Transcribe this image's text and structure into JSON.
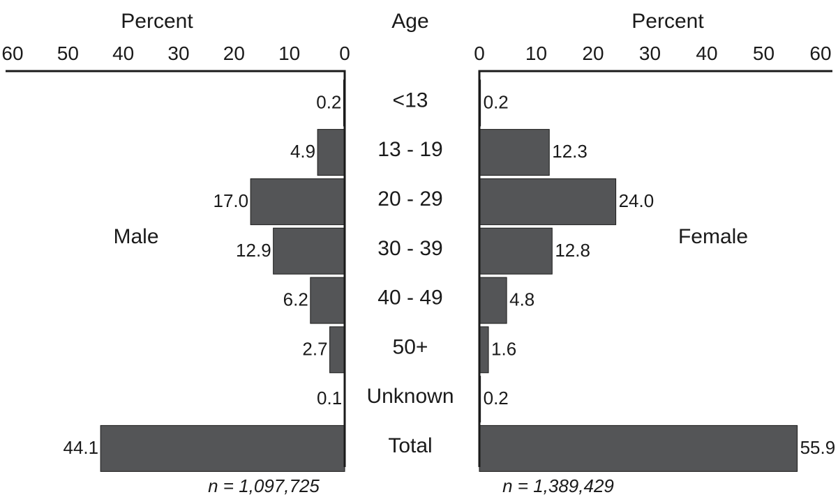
{
  "chart_data": {
    "type": "bar",
    "layout": "population-pyramid",
    "center_label": "Age",
    "categories": [
      "<13",
      "13 - 19",
      "20 - 29",
      "30 - 39",
      "40 - 49",
      "50+",
      "Unknown",
      "Total"
    ],
    "left": {
      "name": "Male",
      "axis_title": "Percent",
      "xlim": [
        0,
        60
      ],
      "ticks": [
        "0",
        "10",
        "20",
        "30",
        "40",
        "50",
        "60"
      ],
      "values": [
        0.2,
        4.9,
        17.0,
        12.9,
        6.2,
        2.7,
        0.1,
        44.1
      ],
      "labels": [
        "0.2",
        "4.9",
        "17.0",
        "12.9",
        "6.2",
        "2.7",
        "0.1",
        "44.1"
      ],
      "n_label": "n = 1,097,725"
    },
    "right": {
      "name": "Female",
      "axis_title": "Percent",
      "xlim": [
        0,
        60
      ],
      "ticks": [
        "0",
        "10",
        "20",
        "30",
        "40",
        "50",
        "60"
      ],
      "values": [
        0.2,
        12.3,
        24.0,
        12.8,
        4.8,
        1.6,
        0.2,
        55.9
      ],
      "labels": [
        "0.2",
        "12.3",
        "24.0",
        "12.8",
        "4.8",
        "1.6",
        "0.2",
        "55.9"
      ],
      "n_label": "n = 1,389,429"
    },
    "colors": {
      "bar": "#545557",
      "axis": "#1a1a1a"
    }
  }
}
